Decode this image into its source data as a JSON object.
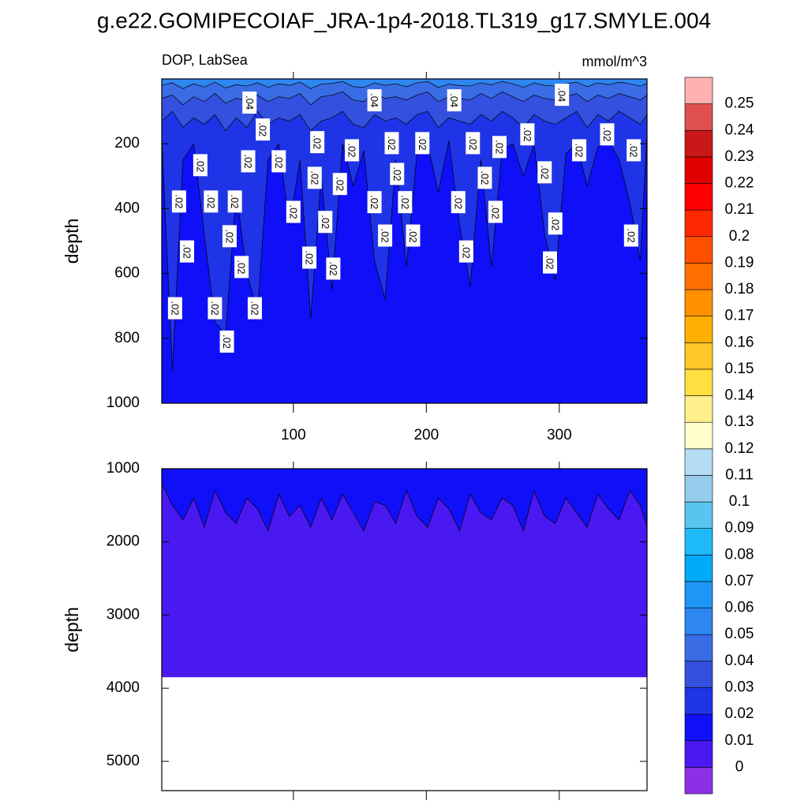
{
  "chart_data": {
    "type": "contour",
    "title": "g.e22.GOMIPECOIAF_JRA-1p4-2018.TL319_g17.SMYLE.004",
    "left_subtitle": "DOP, LabSea",
    "right_subtitle": "mmol/m^3",
    "levels": [
      0,
      0.01,
      0.02,
      0.03,
      0.04,
      0.05,
      0.06,
      0.07,
      0.08,
      0.09,
      0.1,
      0.11,
      0.12,
      0.13,
      0.14,
      0.15,
      0.16,
      0.17,
      0.18,
      0.19,
      0.2,
      0.21,
      0.22,
      0.23,
      0.24,
      0.25
    ],
    "colors": [
      "#8C30E8",
      "#4A18F0",
      "#1010F8",
      "#1E34E6",
      "#3450DE",
      "#3A6CE6",
      "#2E86F0",
      "#1E96F8",
      "#00AAF8",
      "#1EBAF8",
      "#58C4F0",
      "#96CCEC",
      "#B4DCF4",
      "#FFFFCC",
      "#FFF08C",
      "#FFE040",
      "#FFC828",
      "#FFB000",
      "#FF9000",
      "#FF7000",
      "#FF5000",
      "#FF2800",
      "#FF0000",
      "#E00000",
      "#C81818",
      "#E05050",
      "#FFB0B0"
    ],
    "panels": [
      {
        "ylabel": "depth",
        "xlim": [
          1,
          366
        ],
        "ylim": [
          0,
          1000
        ],
        "xticks": [
          100,
          200,
          300
        ],
        "yticks": [
          200,
          400,
          600,
          800,
          1000
        ],
        "show_xtick_labels": true,
        "x": [
          1,
          9,
          17,
          25,
          33,
          41,
          49,
          57,
          65,
          73,
          81,
          89,
          97,
          105,
          113,
          121,
          129,
          137,
          145,
          153,
          161,
          169,
          177,
          185,
          193,
          201,
          209,
          217,
          225,
          233,
          241,
          249,
          257,
          265,
          273,
          281,
          289,
          297,
          305,
          313,
          321,
          329,
          337,
          345,
          353,
          361,
          366
        ],
        "contours": [
          {
            "level": 0.02,
            "depth": [
              180,
              900,
              250,
              200,
              480,
              750,
              790,
              350,
              600,
              720,
              250,
              200,
              450,
              250,
              740,
              300,
              650,
              200,
              330,
              220,
              560,
              680,
              250,
              580,
              230,
              200,
              350,
              190,
              450,
              640,
              250,
              580,
              220,
              200,
              300,
              200,
              480,
              620,
              230,
              200,
              330,
              210,
              190,
              250,
              380,
              560,
              170
            ]
          },
          {
            "level": 0.03,
            "depth": [
              130,
              100,
              150,
              120,
              140,
              110,
              160,
              120,
              150,
              100,
              140,
              120,
              130,
              110,
              160,
              130,
              120,
              100,
              140,
              150,
              110,
              130,
              120,
              140,
              110,
              100,
              150,
              120,
              130,
              140,
              110,
              130,
              100,
              120,
              150,
              110,
              130,
              140,
              120,
              100,
              150,
              110,
              130,
              100,
              120,
              140,
              110
            ]
          },
          {
            "level": 0.04,
            "depth": [
              60,
              50,
              80,
              55,
              70,
              45,
              75,
              60,
              65,
              50,
              70,
              55,
              60,
              45,
              80,
              55,
              50,
              40,
              65,
              70,
              45,
              60,
              55,
              65,
              50,
              40,
              70,
              55,
              60,
              65,
              45,
              60,
              40,
              55,
              70,
              50,
              60,
              65,
              55,
              45,
              70,
              50,
              60,
              45,
              55,
              65,
              50
            ]
          },
          {
            "level": 0.05,
            "depth": [
              20,
              12,
              30,
              15,
              25,
              10,
              28,
              18,
              22,
              12,
              26,
              15,
              20,
              10,
              30,
              16,
              14,
              8,
              24,
              26,
              12,
              20,
              15,
              24,
              12,
              8,
              26,
              16,
              20,
              22,
              12,
              18,
              8,
              15,
              26,
              12,
              20,
              22,
              15,
              10,
              24,
              12,
              18,
              10,
              15,
              22,
              14
            ]
          }
        ],
        "contour_labels": [
          {
            "x": 67,
            "depth": 73,
            "text": ".04"
          },
          {
            "x": 161,
            "depth": 66,
            "text": ".04"
          },
          {
            "x": 221,
            "depth": 66,
            "text": ".04"
          },
          {
            "x": 302,
            "depth": 49,
            "text": ".04"
          },
          {
            "x": 77,
            "depth": 156,
            "text": ".02"
          },
          {
            "x": 118,
            "depth": 195,
            "text": ".02"
          },
          {
            "x": 144,
            "depth": 220,
            "text": ".02"
          },
          {
            "x": 174,
            "depth": 198,
            "text": ".02"
          },
          {
            "x": 197,
            "depth": 198,
            "text": ".02"
          },
          {
            "x": 235,
            "depth": 198,
            "text": ".02"
          },
          {
            "x": 255,
            "depth": 210,
            "text": ".02"
          },
          {
            "x": 276,
            "depth": 171,
            "text": ".02"
          },
          {
            "x": 315,
            "depth": 220,
            "text": ".02"
          },
          {
            "x": 336,
            "depth": 171,
            "text": ".02"
          },
          {
            "x": 356,
            "depth": 220,
            "text": ".02"
          },
          {
            "x": 30,
            "depth": 266,
            "text": ".02"
          },
          {
            "x": 66,
            "depth": 254,
            "text": ".02"
          },
          {
            "x": 89,
            "depth": 254,
            "text": ".02"
          },
          {
            "x": 178,
            "depth": 293,
            "text": ".02"
          },
          {
            "x": 116,
            "depth": 305,
            "text": ".02"
          },
          {
            "x": 135,
            "depth": 324,
            "text": ".02"
          },
          {
            "x": 244,
            "depth": 305,
            "text": ".02"
          },
          {
            "x": 289,
            "depth": 288,
            "text": ".02"
          },
          {
            "x": 14,
            "depth": 378,
            "text": ".02"
          },
          {
            "x": 38,
            "depth": 378,
            "text": ".02"
          },
          {
            "x": 56,
            "depth": 378,
            "text": ".02"
          },
          {
            "x": 100,
            "depth": 410,
            "text": ".02"
          },
          {
            "x": 161,
            "depth": 380,
            "text": ".02"
          },
          {
            "x": 184,
            "depth": 380,
            "text": ".02"
          },
          {
            "x": 224,
            "depth": 380,
            "text": ".02"
          },
          {
            "x": 252,
            "depth": 410,
            "text": ".02"
          },
          {
            "x": 297,
            "depth": 446,
            "text": ".02"
          },
          {
            "x": 124,
            "depth": 441,
            "text": ".02"
          },
          {
            "x": 20,
            "depth": 532,
            "text": ".02"
          },
          {
            "x": 52,
            "depth": 485,
            "text": ".02"
          },
          {
            "x": 169,
            "depth": 483,
            "text": ".02"
          },
          {
            "x": 190,
            "depth": 483,
            "text": ".02"
          },
          {
            "x": 354,
            "depth": 483,
            "text": ".02"
          },
          {
            "x": 112,
            "depth": 551,
            "text": ".02"
          },
          {
            "x": 130,
            "depth": 585,
            "text": ".02"
          },
          {
            "x": 230,
            "depth": 532,
            "text": ".02"
          },
          {
            "x": 61,
            "depth": 580,
            "text": ".02"
          },
          {
            "x": 293,
            "depth": 566,
            "text": ".02"
          },
          {
            "x": 11,
            "depth": 707,
            "text": ".02"
          },
          {
            "x": 41,
            "depth": 707,
            "text": ".02"
          },
          {
            "x": 71,
            "depth": 707,
            "text": ".02"
          },
          {
            "x": 50,
            "depth": 810,
            "text": ".02"
          }
        ]
      },
      {
        "ylabel": "depth",
        "xlim": [
          1,
          366
        ],
        "ylim": [
          1000,
          5400
        ],
        "xticks": [
          100,
          200,
          300
        ],
        "yticks": [
          1000,
          2000,
          3000,
          4000,
          5000
        ],
        "show_xtick_labels": false,
        "x": [
          1,
          9,
          17,
          25,
          33,
          41,
          49,
          57,
          65,
          73,
          81,
          89,
          97,
          105,
          113,
          121,
          129,
          137,
          145,
          153,
          161,
          169,
          177,
          185,
          193,
          201,
          209,
          217,
          225,
          233,
          241,
          249,
          257,
          265,
          273,
          281,
          289,
          297,
          305,
          313,
          321,
          329,
          337,
          345,
          353,
          361,
          366
        ],
        "contours": [
          {
            "level": 0.01,
            "depth": [
              1200,
              1500,
              1700,
              1400,
              1800,
              1300,
              1600,
              1750,
              1400,
              1550,
              1850,
              1350,
              1650,
              1500,
              1800,
              1400,
              1700,
              1350,
              1600,
              1850,
              1450,
              1500,
              1750,
              1300,
              1650,
              1800,
              1400,
              1550,
              1850,
              1350,
              1600,
              1700,
              1400,
              1500,
              1850,
              1300,
              1650,
              1750,
              1400,
              1600,
              1800,
              1350,
              1550,
              1700,
              1300,
              1500,
              1800
            ]
          }
        ],
        "bottom_depth": 3850
      }
    ]
  }
}
